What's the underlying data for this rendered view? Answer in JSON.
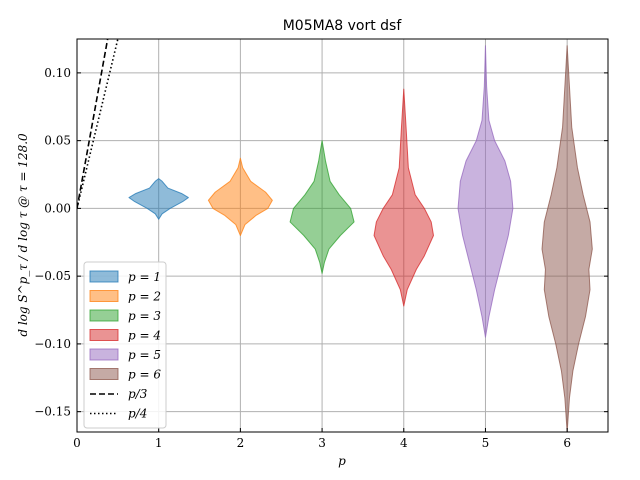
{
  "chart_data": {
    "type": "violin",
    "title": "M05MA8 vort dsf",
    "xlabel": "p",
    "ylabel": "d log S^p_τ / d log τ @ τ = 128.0",
    "xlim": [
      0,
      6.5
    ],
    "ylim": [
      -0.165,
      0.125
    ],
    "xticks": [
      0,
      1,
      2,
      3,
      4,
      5,
      6
    ],
    "yticks": [
      -0.15,
      -0.1,
      -0.05,
      0.0,
      0.05,
      0.1
    ],
    "ytick_labels": [
      "−0.15",
      "−0.10",
      "−0.05",
      "0.00",
      "0.05",
      "0.10"
    ],
    "grid": true,
    "legend_position": "lower-left",
    "violins": [
      {
        "name": "p = 1",
        "legend": "p = 1",
        "p": 1,
        "color": "#1f77b4",
        "profile": [
          [
            -0.008,
            0.0
          ],
          [
            -0.004,
            0.003
          ],
          [
            0.0,
            0.01
          ],
          [
            0.005,
            0.021
          ],
          [
            0.008,
            0.026
          ],
          [
            0.011,
            0.02
          ],
          [
            0.015,
            0.008
          ],
          [
            0.02,
            0.003
          ],
          [
            0.022,
            0.0
          ]
        ]
      },
      {
        "name": "p = 2",
        "legend": "p = 2",
        "p": 2,
        "color": "#ff7f0e",
        "profile": [
          [
            -0.02,
            0.0
          ],
          [
            -0.012,
            0.004
          ],
          [
            -0.005,
            0.014
          ],
          [
            0.0,
            0.024
          ],
          [
            0.006,
            0.028
          ],
          [
            0.012,
            0.022
          ],
          [
            0.02,
            0.009
          ],
          [
            0.03,
            0.002
          ],
          [
            0.037,
            0.0
          ]
        ]
      },
      {
        "name": "p = 3",
        "legend": "p = 3",
        "p": 3,
        "color": "#2ca02c",
        "profile": [
          [
            -0.048,
            0.0
          ],
          [
            -0.04,
            0.002
          ],
          [
            -0.03,
            0.006
          ],
          [
            -0.02,
            0.016
          ],
          [
            -0.01,
            0.028
          ],
          [
            0.0,
            0.025
          ],
          [
            0.01,
            0.015
          ],
          [
            0.02,
            0.007
          ],
          [
            0.035,
            0.003
          ],
          [
            0.05,
            0.0
          ]
        ]
      },
      {
        "name": "p = 4",
        "legend": "p = 4",
        "p": 4,
        "color": "#d62728",
        "profile": [
          [
            -0.072,
            0.0
          ],
          [
            -0.06,
            0.003
          ],
          [
            -0.045,
            0.011
          ],
          [
            -0.035,
            0.018
          ],
          [
            -0.02,
            0.026
          ],
          [
            -0.01,
            0.024
          ],
          [
            0.0,
            0.018
          ],
          [
            0.01,
            0.01
          ],
          [
            0.03,
            0.004
          ],
          [
            0.06,
            0.002
          ],
          [
            0.088,
            0.0
          ]
        ]
      },
      {
        "name": "p = 5",
        "legend": "p = 5",
        "p": 5,
        "color": "#9467bd",
        "profile": [
          [
            -0.095,
            0.0
          ],
          [
            -0.08,
            0.003
          ],
          [
            -0.06,
            0.008
          ],
          [
            -0.04,
            0.014
          ],
          [
            -0.02,
            0.02
          ],
          [
            0.0,
            0.024
          ],
          [
            0.02,
            0.022
          ],
          [
            0.035,
            0.017
          ],
          [
            0.05,
            0.008
          ],
          [
            0.065,
            0.003
          ],
          [
            0.09,
            0.001
          ],
          [
            0.12,
            0.0
          ]
        ]
      },
      {
        "name": "p = 6",
        "legend": "p = 6",
        "p": 6,
        "color": "#8c564b",
        "profile": [
          [
            -0.165,
            0.0
          ],
          [
            -0.14,
            0.002
          ],
          [
            -0.12,
            0.005
          ],
          [
            -0.1,
            0.01
          ],
          [
            -0.08,
            0.016
          ],
          [
            -0.06,
            0.02
          ],
          [
            -0.045,
            0.019
          ],
          [
            -0.03,
            0.022
          ],
          [
            -0.01,
            0.02
          ],
          [
            0.01,
            0.014
          ],
          [
            0.03,
            0.009
          ],
          [
            0.06,
            0.004
          ],
          [
            0.09,
            0.002
          ],
          [
            0.12,
            0.0
          ]
        ]
      }
    ],
    "reference_lines": [
      {
        "name": "p/3",
        "legend": "p/3",
        "slope": 0.33333,
        "style": "dashed"
      },
      {
        "name": "p/4",
        "legend": "p/4",
        "slope": 0.25,
        "style": "dotted"
      }
    ]
  }
}
